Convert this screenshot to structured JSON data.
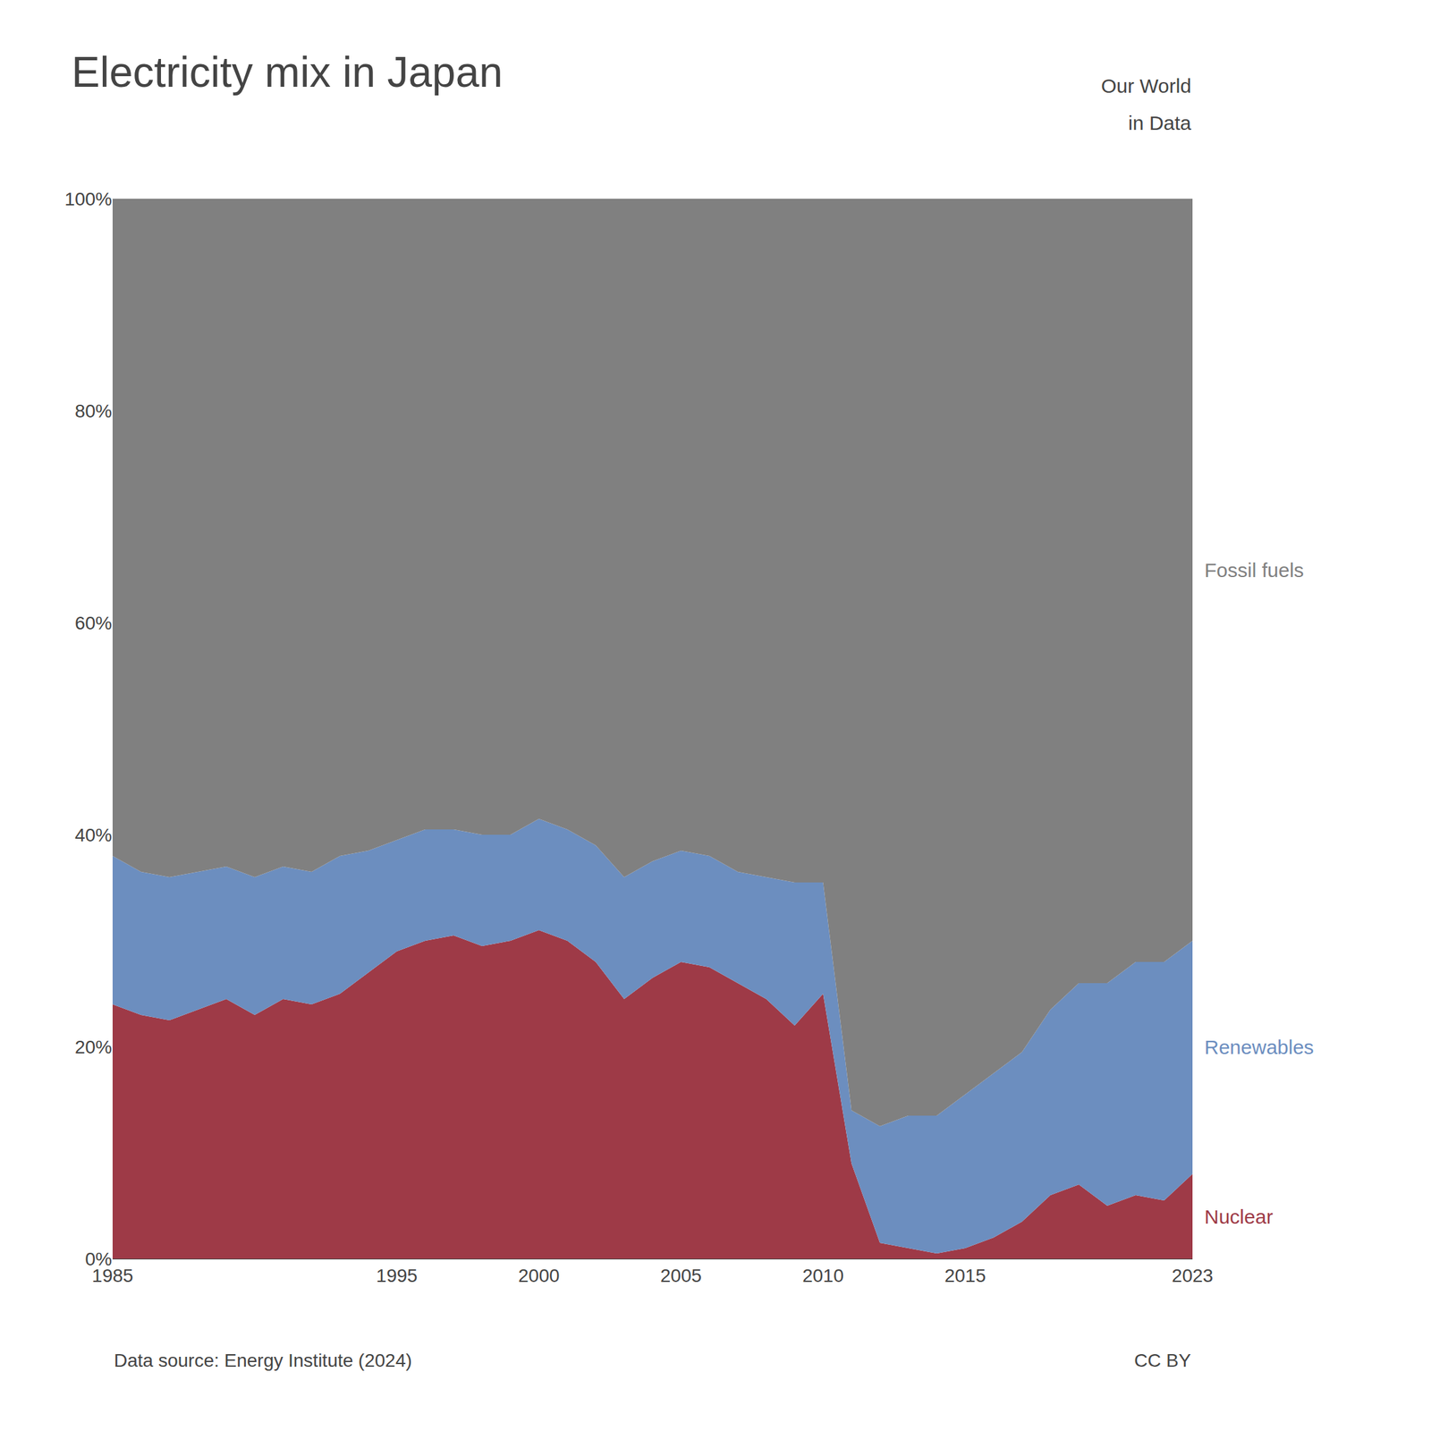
{
  "chart_data": {
    "type": "area",
    "stacked": true,
    "title": "Electricity mix in Japan",
    "x": [
      1985,
      1986,
      1987,
      1988,
      1989,
      1990,
      1991,
      1992,
      1993,
      1994,
      1995,
      1996,
      1997,
      1998,
      1999,
      2000,
      2001,
      2002,
      2003,
      2004,
      2005,
      2006,
      2007,
      2008,
      2009,
      2010,
      2011,
      2012,
      2013,
      2014,
      2015,
      2016,
      2017,
      2018,
      2019,
      2020,
      2021,
      2022,
      2023
    ],
    "series": [
      {
        "name": "Nuclear",
        "color": "#9e3a47",
        "values": [
          24.0,
          23.0,
          22.5,
          23.5,
          24.5,
          23.0,
          24.5,
          24.0,
          25.0,
          27.0,
          29.0,
          30.0,
          30.5,
          29.5,
          30.0,
          31.0,
          30.0,
          28.0,
          24.5,
          26.5,
          28.0,
          27.5,
          26.0,
          24.5,
          22.0,
          25.0,
          9.0,
          1.5,
          1.0,
          0.5,
          1.0,
          2.0,
          3.5,
          6.0,
          7.0,
          5.0,
          6.0,
          5.5,
          8.0
        ]
      },
      {
        "name": "Renewables",
        "color": "#6c8ebf",
        "values": [
          14.0,
          13.5,
          13.5,
          13.0,
          12.5,
          13.0,
          12.5,
          12.5,
          13.0,
          11.5,
          10.5,
          10.5,
          10.0,
          10.5,
          10.0,
          10.5,
          10.5,
          11.0,
          11.5,
          11.0,
          10.5,
          10.5,
          10.5,
          11.5,
          13.5,
          10.5,
          5.0,
          11.0,
          12.5,
          13.0,
          14.5,
          15.5,
          16.0,
          17.5,
          19.0,
          21.0,
          22.0,
          22.5,
          22.0
        ]
      },
      {
        "name": "Fossil fuels",
        "color": "#808080",
        "values": [
          62.0,
          63.5,
          64.0,
          63.5,
          63.0,
          64.0,
          63.0,
          63.5,
          62.0,
          61.5,
          60.5,
          59.5,
          59.5,
          60.0,
          60.0,
          58.5,
          59.5,
          61.0,
          64.0,
          62.5,
          61.5,
          62.0,
          63.5,
          64.0,
          64.5,
          64.5,
          86.0,
          87.5,
          86.5,
          86.5,
          84.5,
          82.5,
          80.5,
          76.5,
          74.0,
          74.0,
          72.0,
          72.0,
          70.0
        ]
      }
    ],
    "xlim": [
      1985,
      2023
    ],
    "xticks": [
      1985,
      1995,
      2000,
      2005,
      2010,
      2015,
      2023
    ],
    "ylim": [
      0,
      100
    ],
    "yticks": [
      {
        "value": 0,
        "label": "0%"
      },
      {
        "value": 20,
        "label": "20%"
      },
      {
        "value": 40,
        "label": "40%"
      },
      {
        "value": 60,
        "label": "60%"
      },
      {
        "value": 80,
        "label": "80%"
      },
      {
        "value": 100,
        "label": "100%"
      }
    ],
    "grid": true,
    "annotations": [
      "Our World",
      "in Data",
      "Data source: Energy Institute (2024)",
      "CC BY"
    ]
  }
}
